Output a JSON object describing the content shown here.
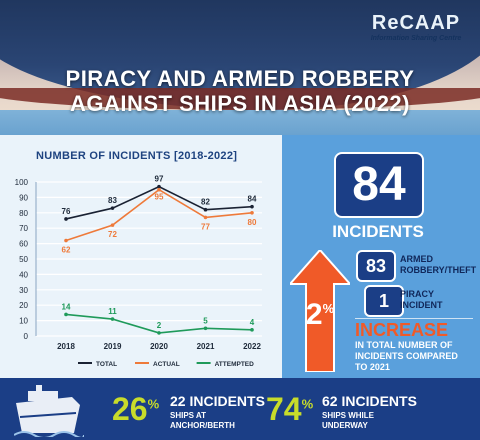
{
  "header": {
    "title_line1": "PIRACY AND ARMED ROBBERY",
    "title_line2": "AGAINST SHIPS IN ASIA (2022)",
    "logo_word": "ReCAAP",
    "logo_sub": "Information Sharing Centre"
  },
  "chart_data": {
    "type": "line",
    "title": "NUMBER OF INCIDENTS [2018-2022]",
    "categories": [
      "2018",
      "2019",
      "2020",
      "2021",
      "2022"
    ],
    "ylim": [
      0,
      100
    ],
    "yticks": [
      0,
      10,
      20,
      30,
      40,
      50,
      60,
      70,
      80,
      90,
      100
    ],
    "grid": true,
    "legend_position": "bottom",
    "series": [
      {
        "name": "TOTAL",
        "values": [
          76,
          83,
          97,
          82,
          84
        ],
        "color": "#1a2233"
      },
      {
        "name": "ACTUAL",
        "values": [
          62,
          72,
          95,
          77,
          80
        ],
        "color": "#ee7a3a"
      },
      {
        "name": "ATTEMPTED",
        "values": [
          14,
          11,
          2,
          5,
          4
        ],
        "color": "#1f9a5a"
      }
    ]
  },
  "summary": {
    "total": "84",
    "total_label": "INCIDENTS",
    "armed_count": "83",
    "armed_label_1": "ARMED",
    "armed_label_2": "ROBBERY/THEFT",
    "piracy_count": "1",
    "piracy_label_1": "PIRACY",
    "piracy_label_2": "INCIDENT",
    "change_pct": "2",
    "change_unit": "%",
    "change_word": "INCREASE",
    "change_text_1": "IN TOTAL NUMBER OF",
    "change_text_2": "INCIDENTS COMPARED",
    "change_text_3": "TO 2021",
    "accent": "#f05a28"
  },
  "footer": {
    "anchor_pct": "26",
    "anchor_unit": "%",
    "anchor_head": "22 INCIDENTS",
    "anchor_sub_1": "SHIPS AT",
    "anchor_sub_2": "ANCHOR/BERTH",
    "underway_pct": "74",
    "underway_unit": "%",
    "underway_head": "62 INCIDENTS",
    "underway_sub_1": "SHIPS WHILE",
    "underway_sub_2": "UNDERWAY",
    "accent": "#c8dc2a"
  }
}
